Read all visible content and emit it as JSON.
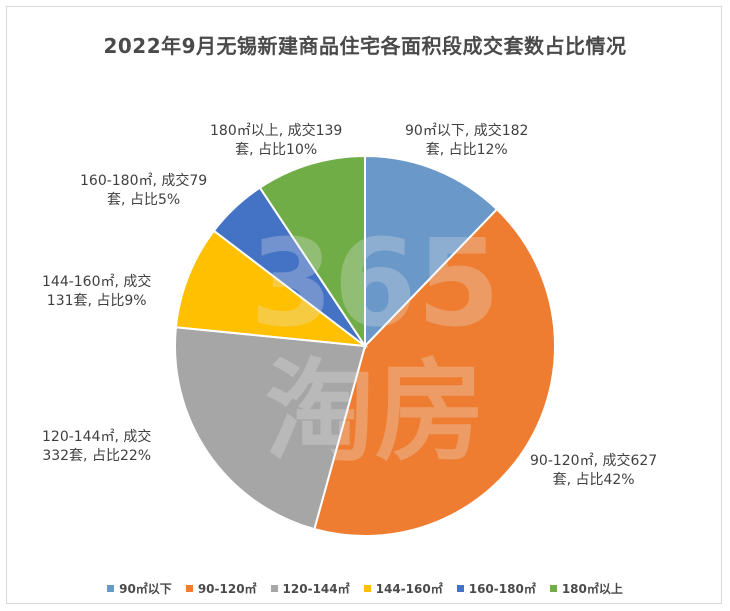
{
  "chart_data": {
    "type": "pie",
    "title": "2022年9月无锡新建商品住宅各面积段成交套数占比情况",
    "categories": [
      "90㎡以下",
      "90-120㎡",
      "120-144㎡",
      "144-160㎡",
      "160-180㎡",
      "180㎡以上"
    ],
    "values": [
      182,
      627,
      332,
      131,
      79,
      139
    ],
    "percents": [
      12,
      42,
      22,
      9,
      5,
      10
    ],
    "colors": [
      "#6a98c8",
      "#ee7d31",
      "#a6a6a6",
      "#fec000",
      "#4472c4",
      "#71ad47"
    ],
    "data_labels": [
      "90㎡以下, 成交182\n套, 占比12%",
      "90-120㎡, 成交627\n套, 占比42%",
      "120-144㎡, 成交\n332套, 占比22%",
      "144-160㎡, 成交\n131套, 占比9%",
      "160-180㎡, 成交79\n套, 占比5%",
      "180㎡以上, 成交139\n套, 占比10%"
    ],
    "legend_position": "bottom"
  },
  "watermark": {
    "number": "365",
    "text": "淘房"
  }
}
